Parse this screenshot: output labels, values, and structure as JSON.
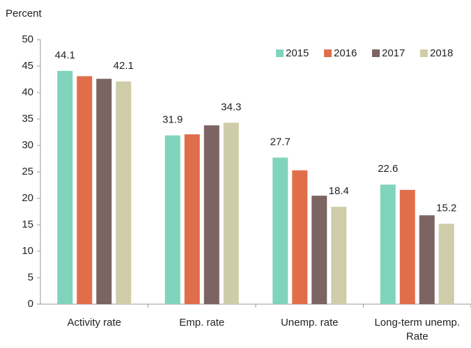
{
  "chart_data": {
    "type": "bar",
    "y_label": "Percent",
    "categories": [
      "Activity rate",
      "Emp. rate",
      "Unemp. rate",
      "Long-term unemp. Rate"
    ],
    "series": [
      {
        "name": "2015",
        "color": "#80d4bc",
        "values": [
          44.1,
          31.9,
          27.7,
          22.6
        ],
        "show_labels": true
      },
      {
        "name": "2016",
        "color": "#e06e4b",
        "values": [
          43.1,
          32.1,
          25.3,
          21.6
        ],
        "show_labels": false
      },
      {
        "name": "2017",
        "color": "#7b6462",
        "values": [
          42.6,
          33.8,
          20.5,
          16.8
        ],
        "show_labels": false
      },
      {
        "name": "2018",
        "color": "#cfcda9",
        "values": [
          42.1,
          34.3,
          18.4,
          15.2
        ],
        "show_labels": true
      }
    ],
    "ylim": [
      0,
      50
    ],
    "yticks": [
      0,
      5,
      10,
      15,
      20,
      25,
      30,
      35,
      40,
      45,
      50
    ],
    "grid": false,
    "legend": "top-right"
  }
}
